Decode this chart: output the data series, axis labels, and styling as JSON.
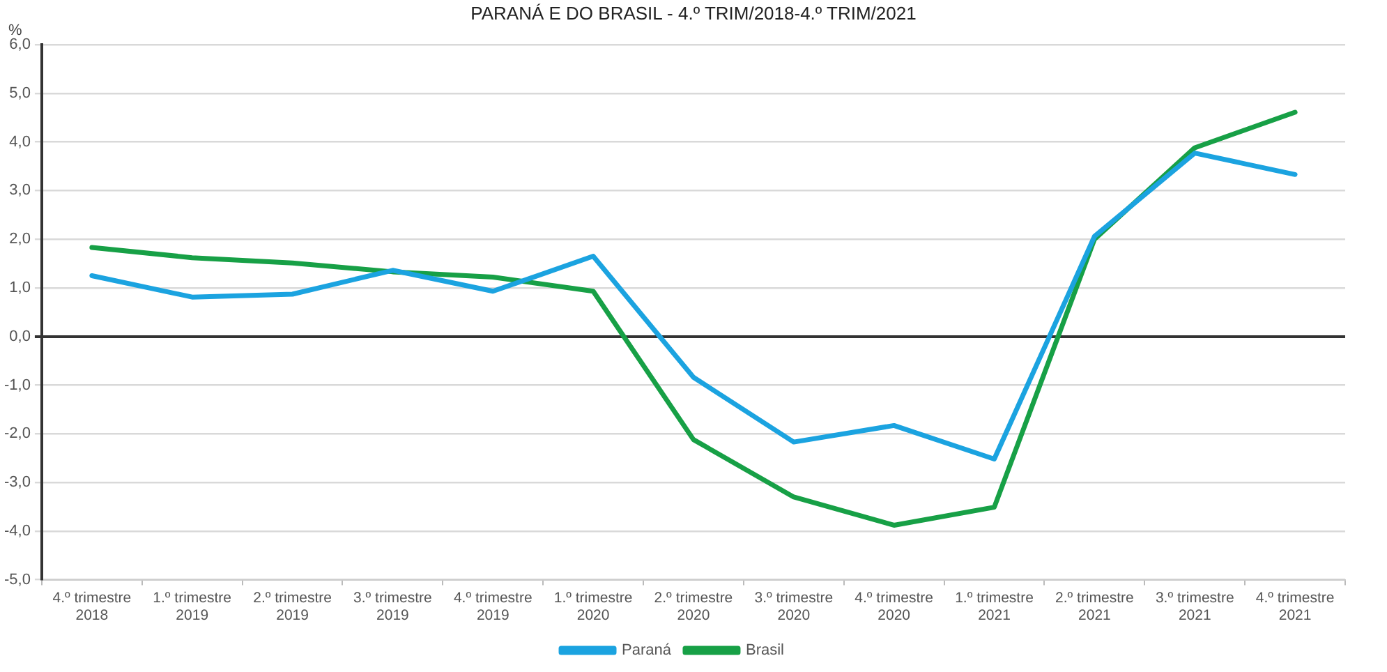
{
  "chart_data": {
    "type": "line",
    "title": "PARANÁ E DO BRASIL - 4.º TRIM/2018-4.º TRIM/2021",
    "ylabel": "%",
    "categories": [
      "4.º trimestre\n2018",
      "1.º trimestre\n2019",
      "2.º trimestre\n2019",
      "3.º trimestre\n2019",
      "4.º trimestre\n2019",
      "1.º trimestre\n2020",
      "2.º trimestre\n2020",
      "3.º trimestre\n2020",
      "4.º trimestre\n2020",
      "1.º trimestre\n2021",
      "2.º trimestre\n2021",
      "3.º trimestre\n2021",
      "4.º trimestre\n2021"
    ],
    "series": [
      {
        "name": "Paraná",
        "color": "#1ba3e0",
        "values": [
          1.25,
          0.81,
          0.87,
          1.36,
          0.93,
          1.65,
          -0.84,
          -2.17,
          -1.83,
          -2.52,
          2.06,
          3.77,
          3.33
        ]
      },
      {
        "name": "Brasil",
        "color": "#17a046",
        "values": [
          1.83,
          1.62,
          1.51,
          1.33,
          1.22,
          0.93,
          -2.12,
          -3.3,
          -3.88,
          -3.51,
          2.0,
          3.88,
          4.61
        ]
      }
    ],
    "ylim": [
      -5,
      6
    ],
    "yticks": [
      {
        "value": -5,
        "label": "-5,0"
      },
      {
        "value": -4,
        "label": "-4,0"
      },
      {
        "value": -3,
        "label": "-3,0"
      },
      {
        "value": -2,
        "label": "-2,0"
      },
      {
        "value": -1,
        "label": "-1,0"
      },
      {
        "value": 0,
        "label": "0,0"
      },
      {
        "value": 1,
        "label": "1,0"
      },
      {
        "value": 2,
        "label": "2,0"
      },
      {
        "value": 3,
        "label": "3,0"
      },
      {
        "value": 4,
        "label": "4,0"
      },
      {
        "value": 5,
        "label": "5,0"
      },
      {
        "value": 6,
        "label": "6,0"
      }
    ],
    "grid": "y",
    "legend": "bottom",
    "marker": "none",
    "line_style": "solid"
  }
}
